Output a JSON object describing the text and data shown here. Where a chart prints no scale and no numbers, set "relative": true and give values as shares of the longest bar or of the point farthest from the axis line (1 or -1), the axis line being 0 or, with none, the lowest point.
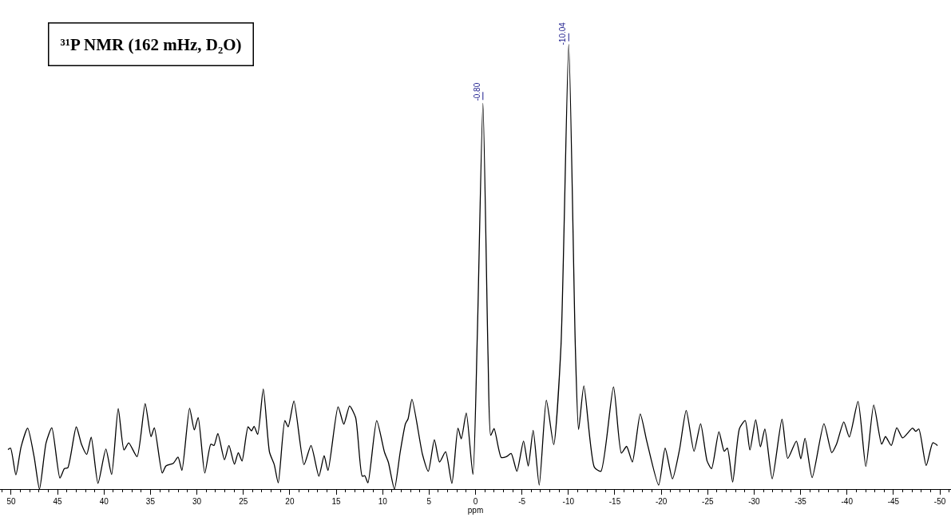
{
  "chart_data": {
    "type": "line",
    "title": "³¹P NMR (162 mHz, D₂O)",
    "xlabel": "ppm",
    "relative": true,
    "xlim": [
      51.2,
      -51.2
    ],
    "xticks": [
      50,
      45,
      40,
      35,
      30,
      25,
      20,
      15,
      10,
      5,
      0,
      -5,
      -10,
      -15,
      -20,
      -25,
      -30,
      -35,
      -40,
      -45,
      -50
    ],
    "legend": false,
    "marker": "none",
    "line_style": "solid",
    "annotations": [
      {
        "text": "-0.80",
        "x": -0.8,
        "y": 0.868
      },
      {
        "text": "-10.04",
        "x": -10.04,
        "y": 1.0
      }
    ],
    "series": [
      {
        "color": "#000000",
        "x": [
          50.34,
          50.06,
          49.49,
          48.93,
          48.22,
          47.52,
          46.95,
          46.24,
          45.62,
          44.75,
          44.26,
          43.9,
          42.99,
          42.43,
          41.86,
          41.38,
          40.65,
          39.8,
          39.18,
          38.47,
          37.85,
          37.34,
          36.44,
          35.57,
          34.94,
          34.58,
          33.73,
          33.33,
          32.54,
          32.03,
          31.61,
          30.79,
          30.28,
          29.86,
          29.15,
          28.5,
          28.16,
          27.74,
          27.03,
          26.55,
          25.96,
          25.54,
          25.14,
          24.49,
          24.12,
          23.84,
          23.45,
          22.85,
          22.18,
          21.67,
          21.24,
          20.53,
          20.17,
          19.55,
          18.47,
          17.71,
          16.86,
          16.3,
          15.88,
          14.8,
          14.18,
          13.56,
          12.91,
          12.2,
          11.92,
          11.58,
          10.64,
          9.8,
          9.38,
          8.73,
          8.11,
          7.54,
          7.26,
          6.84,
          5.71,
          5.08,
          4.43,
          3.87,
          3.22,
          2.54,
          1.89,
          1.53,
          0.99,
          0.28,
          -0.2,
          -0.8,
          -1.35,
          -1.64,
          -2.0,
          -2.77,
          -3.33,
          -3.84,
          -4.46,
          -5.17,
          -5.68,
          -6.21,
          -6.86,
          -7.63,
          -8.42,
          -9.2,
          -10.04,
          -10.75,
          -11.1,
          -11.67,
          -12.8,
          -13.5,
          -14.86,
          -15.71,
          -16.27,
          -16.89,
          -17.74,
          -18.45,
          -19.72,
          -20.42,
          -21.21,
          -21.97,
          -22.69,
          -23.53,
          -24.24,
          -24.94,
          -25.42,
          -26.21,
          -26.78,
          -27.12,
          -27.69,
          -28.42,
          -29.04,
          -29.55,
          -30.17,
          -30.68,
          -31.16,
          -31.95,
          -33.0,
          -33.62,
          -34.55,
          -35.03,
          -35.48,
          -36.25,
          -37.52,
          -38.36,
          -38.87,
          -39.66,
          -40.25,
          -41.19,
          -42.03,
          -42.88,
          -43.73,
          -44.15,
          -44.77,
          -45.36,
          -45.99,
          -47.06,
          -47.4,
          -47.74,
          -48.53,
          -49.24,
          -49.75
        ],
        "values": [
          0.089,
          0.092,
          0.032,
          0.095,
          0.137,
          0.072,
          0,
          0.104,
          0.138,
          0.025,
          0.046,
          0.048,
          0.14,
          0.101,
          0.078,
          0.117,
          0.013,
          0.09,
          0.033,
          0.181,
          0.088,
          0.104,
          0.073,
          0.192,
          0.118,
          0.138,
          0.036,
          0.052,
          0.058,
          0.072,
          0.042,
          0.182,
          0.133,
          0.161,
          0.036,
          0.101,
          0.098,
          0.125,
          0.066,
          0.098,
          0.056,
          0.082,
          0.063,
          0.14,
          0.131,
          0.141,
          0.123,
          0.225,
          0.083,
          0.055,
          0.014,
          0.154,
          0.14,
          0.198,
          0.055,
          0.098,
          0.029,
          0.075,
          0.042,
          0.185,
          0.146,
          0.187,
          0.161,
          0.029,
          0.03,
          0.014,
          0.154,
          0.083,
          0.06,
          0,
          0.083,
          0.147,
          0.158,
          0.202,
          0.078,
          0.04,
          0.111,
          0.061,
          0.084,
          0.013,
          0.137,
          0.113,
          0.171,
          0.033,
          0.35,
          0.868,
          0.3,
          0.121,
          0.136,
          0.071,
          0.073,
          0.08,
          0.04,
          0.108,
          0.052,
          0.132,
          0.009,
          0.2,
          0.1,
          0.32,
          1.0,
          0.32,
          0.134,
          0.232,
          0.049,
          0.04,
          0.23,
          0.081,
          0.096,
          0.061,
          0.169,
          0.107,
          0.009,
          0.092,
          0.023,
          0.089,
          0.177,
          0.085,
          0.147,
          0.063,
          0.046,
          0.129,
          0.085,
          0.092,
          0.016,
          0.136,
          0.154,
          0.088,
          0.156,
          0.095,
          0.135,
          0.023,
          0.157,
          0.069,
          0.108,
          0.068,
          0.114,
          0.026,
          0.147,
          0.082,
          0.101,
          0.151,
          0.117,
          0.197,
          0.051,
          0.189,
          0.101,
          0.118,
          0.098,
          0.138,
          0.115,
          0.137,
          0.13,
          0.135,
          0.053,
          0.104,
          0.098
        ]
      }
    ]
  }
}
